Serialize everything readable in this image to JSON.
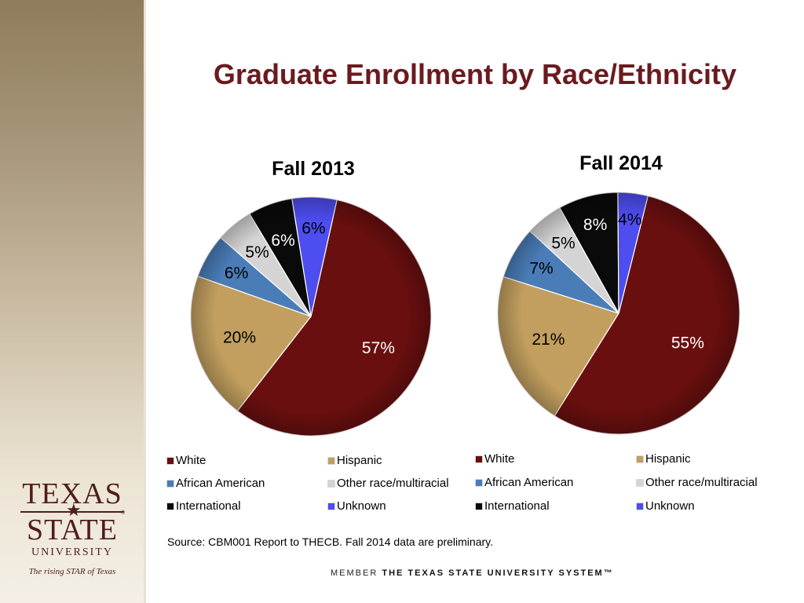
{
  "slide": {
    "title": "Graduate Enrollment by Race/Ethnicity",
    "source": "Source:  CBM001 Report to THECB. Fall 2014 data are preliminary.",
    "footer_member": "MEMBER",
    "footer_system": "THE TEXAS STATE UNIVERSITY SYSTEM™"
  },
  "logo": {
    "line1": "TEXAS",
    "line2": "STATE",
    "line3": "UNIVERSITY",
    "tagline": "The rising STAR of Texas",
    "registered": "®"
  },
  "colors": {
    "White": "#6a0f0f",
    "Hispanic": "#c29f5f",
    "African American": "#4a7db8",
    "Other race/multiracial": "#d4d4d4",
    "International": "#0a0a0a",
    "Unknown": "#4d4df0",
    "title": "#6b1a1f"
  },
  "chart_data": [
    {
      "type": "pie",
      "title": "Fall 2013",
      "categories": [
        "White",
        "Hispanic",
        "African American",
        "Other race/multiracial",
        "International",
        "Unknown"
      ],
      "values": [
        57,
        20,
        6,
        5,
        6,
        6
      ],
      "labels": [
        "57%",
        "20%",
        "6%",
        "5%",
        "6%",
        "6%"
      ],
      "legend": "bottom"
    },
    {
      "type": "pie",
      "title": "Fall 2014",
      "categories": [
        "White",
        "Hispanic",
        "African American",
        "Other race/multiracial",
        "International",
        "Unknown"
      ],
      "values": [
        55,
        21,
        7,
        5,
        8,
        4
      ],
      "labels": [
        "55%",
        "21%",
        "7%",
        "5%",
        "8%",
        "4%"
      ],
      "legend": "bottom"
    }
  ]
}
